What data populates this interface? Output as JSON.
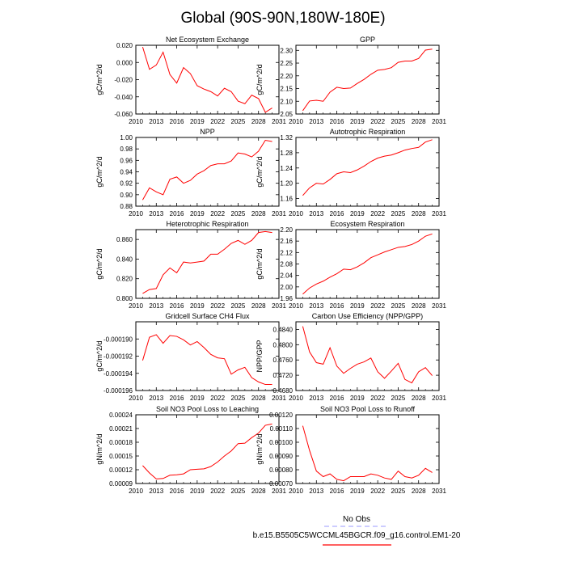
{
  "page_title": "Global (90S-90N,180W-180E)",
  "colors": {
    "series": "#ff0000",
    "obs": "#9999ff",
    "axis": "#000000"
  },
  "legend": {
    "no_obs_label": "No Obs",
    "case_label": "b.e15.B5505C5WCCML45BGCR.f09_g16.control.EM1-20"
  },
  "chart_data": [
    {
      "type": "line",
      "title": "Net Ecosystem Exchange",
      "ylabel": "gC/m^2/d",
      "xlabel": "",
      "xlim": [
        2010,
        2031
      ],
      "xticks": [
        2010,
        2013,
        2016,
        2019,
        2022,
        2025,
        2028,
        2031
      ],
      "ylim": [
        -0.06,
        0.02
      ],
      "yticks": [
        "0.020",
        "0.000",
        "-0.020",
        "-0.040",
        "-0.060"
      ],
      "x": [
        2011,
        2012,
        2013,
        2014,
        2015,
        2016,
        2017,
        2018,
        2019,
        2020,
        2021,
        2022,
        2023,
        2024,
        2025,
        2026,
        2027,
        2028,
        2029,
        2030
      ],
      "values": [
        0.018,
        -0.008,
        -0.003,
        0.012,
        -0.014,
        -0.024,
        -0.006,
        -0.013,
        -0.027,
        -0.031,
        -0.034,
        -0.039,
        -0.03,
        -0.034,
        -0.045,
        -0.048,
        -0.038,
        -0.042,
        -0.058,
        -0.053
      ]
    },
    {
      "type": "line",
      "title": "GPP",
      "ylabel": "gC/m^2/d",
      "xlabel": "",
      "xlim": [
        2010,
        2031
      ],
      "xticks": [
        2010,
        2013,
        2016,
        2019,
        2022,
        2025,
        2028,
        2031
      ],
      "ylim": [
        2.05,
        2.32
      ],
      "yticks": [
        "2.30",
        "2.25",
        "2.20",
        "2.15",
        "2.10",
        "2.05"
      ],
      "x": [
        2011,
        2012,
        2013,
        2014,
        2015,
        2016,
        2017,
        2018,
        2019,
        2020,
        2021,
        2022,
        2023,
        2024,
        2025,
        2026,
        2027,
        2028,
        2029,
        2030
      ],
      "values": [
        2.063,
        2.101,
        2.104,
        2.1,
        2.136,
        2.155,
        2.15,
        2.152,
        2.17,
        2.186,
        2.206,
        2.222,
        2.225,
        2.232,
        2.253,
        2.258,
        2.258,
        2.268,
        2.301,
        2.305
      ]
    },
    {
      "type": "line",
      "title": "NPP",
      "ylabel": "gC/m^2/d",
      "xlabel": "",
      "xlim": [
        2010,
        2031
      ],
      "xticks": [
        2010,
        2013,
        2016,
        2019,
        2022,
        2025,
        2028,
        2031
      ],
      "ylim": [
        0.88,
        1.0
      ],
      "yticks": [
        "1.00",
        "0.98",
        "0.96",
        "0.94",
        "0.92",
        "0.90",
        "0.88"
      ],
      "x": [
        2011,
        2012,
        2013,
        2014,
        2015,
        2016,
        2017,
        2018,
        2019,
        2020,
        2021,
        2022,
        2023,
        2024,
        2025,
        2026,
        2027,
        2028,
        2029,
        2030
      ],
      "values": [
        0.891,
        0.912,
        0.905,
        0.9,
        0.927,
        0.931,
        0.92,
        0.925,
        0.936,
        0.942,
        0.951,
        0.954,
        0.954,
        0.959,
        0.973,
        0.971,
        0.966,
        0.976,
        0.995,
        0.993
      ]
    },
    {
      "type": "line",
      "title": "Autotrophic Respiration",
      "ylabel": "gC/m^2/d",
      "xlabel": "",
      "xlim": [
        2010,
        2031
      ],
      "xticks": [
        2010,
        2013,
        2016,
        2019,
        2022,
        2025,
        2028,
        2031
      ],
      "ylim": [
        1.14,
        1.32
      ],
      "yticks": [
        "1.32",
        "1.28",
        "1.24",
        "1.20",
        "1.16"
      ],
      "x": [
        2011,
        2012,
        2013,
        2014,
        2015,
        2016,
        2017,
        2018,
        2019,
        2020,
        2021,
        2022,
        2023,
        2024,
        2025,
        2026,
        2027,
        2028,
        2029,
        2030
      ],
      "values": [
        1.168,
        1.188,
        1.2,
        1.198,
        1.21,
        1.225,
        1.23,
        1.228,
        1.235,
        1.245,
        1.257,
        1.266,
        1.271,
        1.274,
        1.28,
        1.287,
        1.291,
        1.294,
        1.308,
        1.314
      ]
    },
    {
      "type": "line",
      "title": "Heterotrophic Respiration",
      "ylabel": "gC/m^2/d",
      "xlabel": "",
      "xlim": [
        2010,
        2031
      ],
      "xticks": [
        2010,
        2013,
        2016,
        2019,
        2022,
        2025,
        2028,
        2031
      ],
      "ylim": [
        0.8,
        0.87
      ],
      "yticks": [
        "0.860",
        "0.840",
        "0.820",
        "0.800"
      ],
      "x": [
        2011,
        2012,
        2013,
        2014,
        2015,
        2016,
        2017,
        2018,
        2019,
        2020,
        2021,
        2022,
        2023,
        2024,
        2025,
        2026,
        2027,
        2028,
        2029,
        2030
      ],
      "values": [
        0.805,
        0.809,
        0.81,
        0.824,
        0.831,
        0.826,
        0.837,
        0.836,
        0.837,
        0.838,
        0.845,
        0.845,
        0.85,
        0.856,
        0.859,
        0.855,
        0.859,
        0.867,
        0.868,
        0.867
      ]
    },
    {
      "type": "line",
      "title": "Ecosystem Respiration",
      "ylabel": "gC/m^2/d",
      "xlabel": "",
      "xlim": [
        2010,
        2031
      ],
      "xticks": [
        2010,
        2013,
        2016,
        2019,
        2022,
        2025,
        2028,
        2031
      ],
      "ylim": [
        1.96,
        2.2
      ],
      "yticks": [
        "2.20",
        "2.16",
        "2.12",
        "2.08",
        "2.04",
        "2.00",
        "1.96"
      ],
      "x": [
        2011,
        2012,
        2013,
        2014,
        2015,
        2016,
        2017,
        2018,
        2019,
        2020,
        2021,
        2022,
        2023,
        2024,
        2025,
        2026,
        2027,
        2028,
        2029,
        2030
      ],
      "values": [
        1.975,
        1.996,
        2.01,
        2.02,
        2.034,
        2.046,
        2.062,
        2.06,
        2.07,
        2.084,
        2.102,
        2.112,
        2.122,
        2.13,
        2.138,
        2.141,
        2.148,
        2.16,
        2.177,
        2.185
      ]
    },
    {
      "type": "line",
      "title": "Gridcell Surface CH4 Flux",
      "ylabel": "gC/m^2/d",
      "xlabel": "",
      "xlim": [
        2010,
        2031
      ],
      "xticks": [
        2010,
        2013,
        2016,
        2019,
        2022,
        2025,
        2028,
        2031
      ],
      "ylim": [
        -0.000196,
        -0.000188
      ],
      "yticks": [
        "-0.000190",
        "-0.000192",
        "-0.000194",
        "-0.000196"
      ],
      "x": [
        2011,
        2012,
        2013,
        2014,
        2015,
        2016,
        2017,
        2018,
        2019,
        2020,
        2021,
        2022,
        2023,
        2024,
        2025,
        2026,
        2027,
        2028,
        2029,
        2030
      ],
      "values": [
        -0.0001925,
        -0.0001898,
        -0.0001895,
        -0.0001905,
        -0.0001896,
        -0.0001897,
        -0.0001901,
        -0.0001907,
        -0.0001903,
        -0.000191,
        -0.0001918,
        -0.0001922,
        -0.0001923,
        -0.0001941,
        -0.0001936,
        -0.0001933,
        -0.0001945,
        -0.000195,
        -0.0001953,
        -0.0001953
      ]
    },
    {
      "type": "line",
      "title": "Carbon Use Efficiency (NPP/GPP)",
      "ylabel": "NPP/GPP",
      "xlabel": "",
      "xlim": [
        2010,
        2031
      ],
      "xticks": [
        2010,
        2013,
        2016,
        2019,
        2022,
        2025,
        2028,
        2031
      ],
      "ylim": [
        0.468,
        0.486
      ],
      "yticks": [
        "0.4840",
        "0.4800",
        "0.4760",
        "0.4720",
        "0.4680"
      ],
      "x": [
        2011,
        2012,
        2013,
        2014,
        2015,
        2016,
        2017,
        2018,
        2019,
        2020,
        2021,
        2022,
        2023,
        2024,
        2025,
        2026,
        2027,
        2028,
        2029,
        2030
      ],
      "values": [
        0.4848,
        0.4781,
        0.4753,
        0.4749,
        0.4792,
        0.4744,
        0.4725,
        0.4738,
        0.4749,
        0.4755,
        0.4765,
        0.4729,
        0.4712,
        0.4731,
        0.4751,
        0.4709,
        0.47,
        0.4729,
        0.474,
        0.4719
      ]
    },
    {
      "type": "line",
      "title": "Soil NO3 Pool Loss to Leaching",
      "ylabel": "gN/m^2/d",
      "xlabel": "",
      "xlim": [
        2010,
        2031
      ],
      "xticks": [
        2010,
        2013,
        2016,
        2019,
        2022,
        2025,
        2028,
        2031
      ],
      "ylim": [
        9e-05,
        0.00024
      ],
      "yticks": [
        "0.00024",
        "0.00021",
        "0.00018",
        "0.00015",
        "0.00012",
        "0.00009"
      ],
      "x": [
        2011,
        2012,
        2013,
        2014,
        2015,
        2016,
        2017,
        2018,
        2019,
        2020,
        2021,
        2022,
        2023,
        2024,
        2025,
        2026,
        2027,
        2028,
        2029,
        2030
      ],
      "values": [
        0.000129,
        0.000113,
        0.0001,
        0.000101,
        0.000108,
        0.000109,
        0.000111,
        0.00012,
        0.000121,
        0.000122,
        0.000127,
        0.000137,
        0.00015,
        0.000161,
        0.000177,
        0.000178,
        0.00019,
        0.0002,
        0.000217,
        0.00022
      ]
    },
    {
      "type": "line",
      "title": "Soil NO3 Pool Loss to Runoff",
      "ylabel": "gN/m^2/d",
      "xlabel": "",
      "xlim": [
        2010,
        2031
      ],
      "xticks": [
        2010,
        2013,
        2016,
        2019,
        2022,
        2025,
        2028,
        2031
      ],
      "ylim": [
        0.0007,
        0.0012
      ],
      "yticks": [
        "0.00120",
        "0.00110",
        "0.00100",
        "0.00090",
        "0.00080",
        "0.00070"
      ],
      "x": [
        2011,
        2012,
        2013,
        2014,
        2015,
        2016,
        2017,
        2018,
        2019,
        2020,
        2021,
        2022,
        2023,
        2024,
        2025,
        2026,
        2027,
        2028,
        2029,
        2030
      ],
      "values": [
        0.00112,
        0.00094,
        0.00079,
        0.00075,
        0.00077,
        0.00073,
        0.00072,
        0.00075,
        0.00075,
        0.00075,
        0.00077,
        0.00076,
        0.00074,
        0.00073,
        0.00079,
        0.00075,
        0.00074,
        0.00076,
        0.00081,
        0.00078
      ]
    }
  ]
}
